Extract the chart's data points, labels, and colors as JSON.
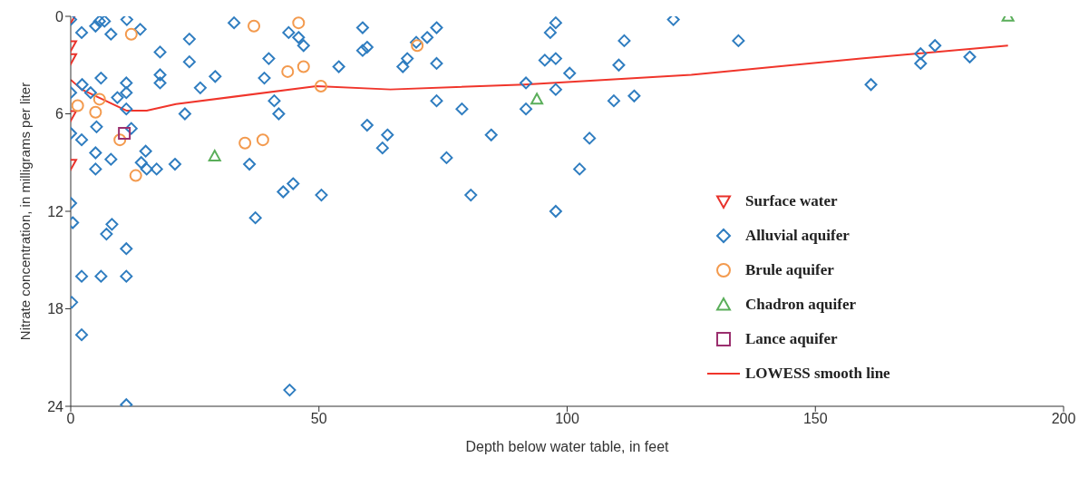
{
  "chart_data": {
    "type": "scatter",
    "xlabel": "Depth below water table, in feet",
    "ylabel": "Nitrate concentration, in milligrams per liter",
    "xlim": [
      0,
      200
    ],
    "xticks": [
      0,
      50,
      100,
      150,
      200
    ],
    "ylim": [
      24,
      0
    ],
    "yticks": [
      0,
      6,
      12,
      18,
      24
    ],
    "grid": false,
    "legend": "right",
    "series": [
      {
        "name": "Surface water",
        "color": "#e8312a",
        "marker": "triangle-down",
        "x": [
          0,
          0,
          0,
          0,
          0
        ],
        "values": [
          0.1,
          1.8,
          2.6,
          6.1,
          9.1
        ]
      },
      {
        "name": "Alluvial aquifer",
        "color": "#2f7dc0",
        "marker": "diamond",
        "x": [
          0,
          2.2,
          5.0,
          8.1,
          11.3,
          5.8,
          6.8,
          14.0,
          32.9,
          23.9,
          18.0,
          23.9,
          18.0,
          18.0,
          29.1,
          26.1,
          39.9,
          39.0,
          43.9,
          45.9,
          46.9,
          6.1,
          11.2,
          11.2,
          2.3,
          4.0,
          9.4,
          11.2,
          23.0,
          41.0,
          41.9,
          5.2,
          12.2,
          2.2,
          0,
          0,
          15.1,
          5.0,
          8.1,
          14.2,
          5.0,
          15.3,
          17.3,
          21.0,
          36.0,
          42.8,
          44.8,
          50.5,
          0,
          58.8,
          58.8,
          59.7,
          54.0,
          69.6,
          71.8,
          73.7,
          67.8,
          66.9,
          73.7,
          73.7,
          78.8,
          59.7,
          63.8,
          62.8,
          75.7,
          84.7,
          80.6,
          97.7,
          96.6,
          95.5,
          97.7,
          100.5,
          111.5,
          110.4,
          91.7,
          97.7,
          91.7,
          109.4,
          113.5,
          104.5,
          102.5,
          97.7,
          121.4,
          134.5,
          161.2,
          171.2,
          171.2,
          174.1,
          181.1,
          0.4,
          8.3,
          7.2,
          11.2,
          2.2,
          6.1,
          11.2,
          0.2,
          2.2,
          11.2,
          37.2,
          44.1
        ],
        "values": [
          0.2,
          1.0,
          0.6,
          1.1,
          0.2,
          0.3,
          0.3,
          0.8,
          0.4,
          1.4,
          2.2,
          2.8,
          3.6,
          4.1,
          3.7,
          4.4,
          2.6,
          3.8,
          1.0,
          1.3,
          1.8,
          3.8,
          4.1,
          4.7,
          4.2,
          4.7,
          5.0,
          5.7,
          6.0,
          5.2,
          6.0,
          6.8,
          6.9,
          7.6,
          7.2,
          4.7,
          8.3,
          8.4,
          8.8,
          9.0,
          9.4,
          9.4,
          9.4,
          9.1,
          9.1,
          10.8,
          10.3,
          11.0,
          11.5,
          0.7,
          2.1,
          1.9,
          3.1,
          1.6,
          1.3,
          0.7,
          2.6,
          3.1,
          2.9,
          5.2,
          5.7,
          6.7,
          7.3,
          8.1,
          8.7,
          7.3,
          11.0,
          0.4,
          1.0,
          2.7,
          2.6,
          3.5,
          1.5,
          3.0,
          4.1,
          4.5,
          5.7,
          5.2,
          4.9,
          7.5,
          9.4,
          12.0,
          0.2,
          1.5,
          4.2,
          2.3,
          2.9,
          1.8,
          2.5,
          12.7,
          12.8,
          13.4,
          14.3,
          16.0,
          16.0,
          16.0,
          17.6,
          19.6,
          23.9,
          12.4,
          23.0
        ]
      },
      {
        "name": "Brule aquifer",
        "color": "#f39a4e",
        "marker": "circle",
        "x": [
          36.9,
          12.2,
          45.9,
          43.7,
          46.9,
          50.4,
          1.4,
          5.0,
          5.8,
          9.9,
          35.1,
          38.7,
          13.1,
          69.8
        ],
        "values": [
          0.6,
          1.1,
          0.4,
          3.4,
          3.1,
          4.3,
          5.5,
          5.9,
          5.1,
          7.6,
          7.8,
          7.6,
          9.8,
          1.8
        ]
      },
      {
        "name": "Chadron aquifer",
        "color": "#5aae5a",
        "marker": "triangle",
        "x": [
          29.0,
          93.9,
          188.8
        ],
        "values": [
          8.6,
          5.1,
          0.0
        ]
      },
      {
        "name": "Lance aquifer",
        "color": "#9b2f6e",
        "marker": "square",
        "x": [
          10.8
        ],
        "values": [
          7.2
        ]
      },
      {
        "name": "LOWESS smooth line",
        "type": "line",
        "color": "#f0352b",
        "marker": "none",
        "x": [
          0,
          2.2,
          11.2,
          15.3,
          21.2,
          49.5,
          64.4,
          91.4,
          125,
          159.2,
          188.8
        ],
        "values": [
          3.9,
          4.5,
          5.8,
          5.8,
          5.4,
          4.3,
          4.5,
          4.2,
          3.6,
          2.6,
          1.8
        ]
      }
    ]
  }
}
